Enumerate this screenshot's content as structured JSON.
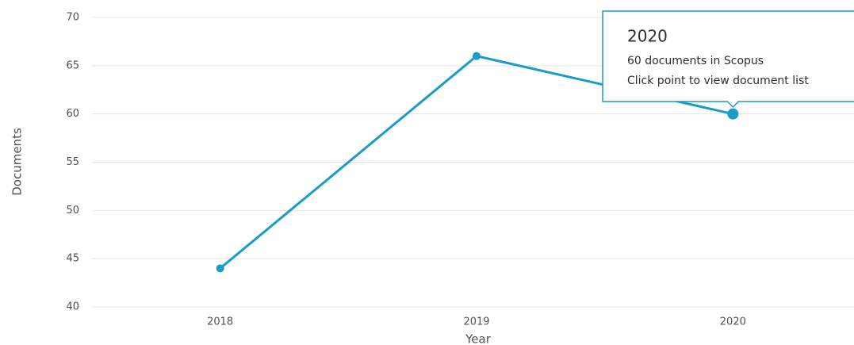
{
  "chart_data": {
    "type": "line",
    "categories": [
      "2018",
      "2019",
      "2020"
    ],
    "values": [
      44,
      66,
      60
    ],
    "color": "#1a9cc7",
    "ylim": [
      40,
      70
    ],
    "yticks": [
      40,
      45,
      50,
      55,
      60,
      65,
      70
    ],
    "grid": true,
    "xlabel": "Year",
    "ylabel": "Documents",
    "tooltip": {
      "title": "2020",
      "lines": [
        "60 documents in Scopus",
        "Click point to view document list"
      ]
    }
  }
}
